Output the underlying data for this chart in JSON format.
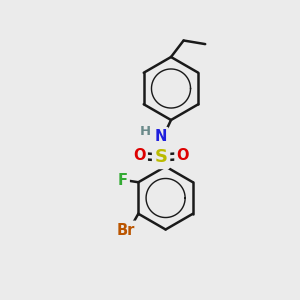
{
  "bg_color": "#ebebeb",
  "bond_color": "#1a1a1a",
  "bond_width": 1.8,
  "atom_labels": {
    "H": {
      "color": "#6a8a8a",
      "fontsize": 9.5
    },
    "N": {
      "color": "#2020dd",
      "fontsize": 10.5
    },
    "O": {
      "color": "#dd0000",
      "fontsize": 10.5
    },
    "S": {
      "color": "#bbbb00",
      "fontsize": 13
    },
    "F": {
      "color": "#33aa33",
      "fontsize": 10.5
    },
    "Br": {
      "color": "#bb5500",
      "fontsize": 10.5
    }
  },
  "figsize": [
    3.0,
    3.0
  ],
  "dpi": 100,
  "xlim": [
    0,
    10
  ],
  "ylim": [
    0,
    10
  ]
}
